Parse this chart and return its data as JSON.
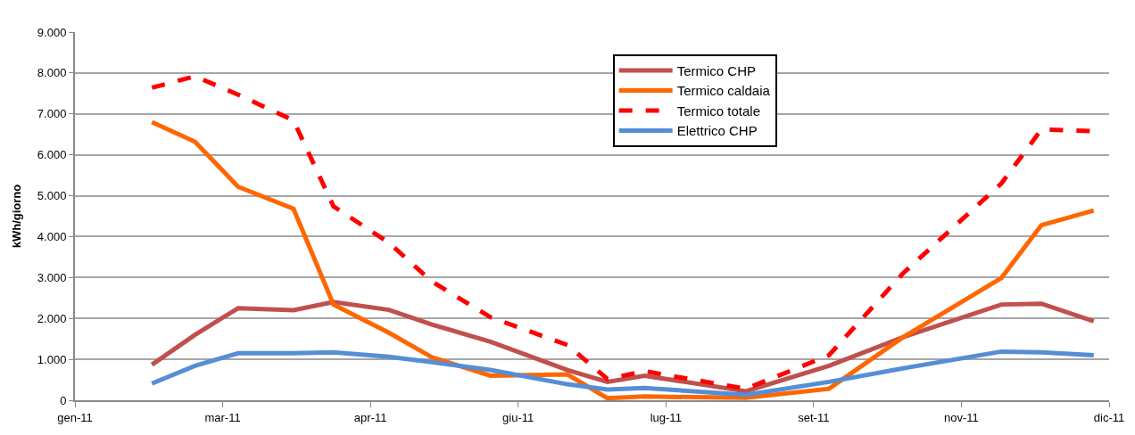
{
  "chart_data": {
    "type": "line",
    "ylabel": "kWh/giorno",
    "x": [
      "2011-02-14",
      "2011-02-28",
      "2011-03-14",
      "2011-04-01",
      "2011-04-14",
      "2011-05-02",
      "2011-05-16",
      "2011-06-04",
      "2011-06-29",
      "2011-07-12",
      "2011-07-24",
      "2011-08-26",
      "2011-09-22",
      "2011-10-16",
      "2011-11-17",
      "2011-11-30",
      "2011-12-17"
    ],
    "series": [
      {
        "name": "Termico CHP",
        "color": "#c0504d",
        "line_style": "solid",
        "values": [
          870,
          1600,
          2250,
          2200,
          2400,
          2210,
          1850,
          1430,
          740,
          450,
          600,
          220,
          840,
          1540,
          2340,
          2360,
          1930
        ]
      },
      {
        "name": "Termico caldaia",
        "color": "#ff6600",
        "line_style": "solid",
        "values": [
          6800,
          6320,
          5220,
          4680,
          2340,
          1650,
          1050,
          600,
          630,
          50,
          90,
          60,
          280,
          1540,
          2990,
          4280,
          4640
        ]
      },
      {
        "name": "Termico totale",
        "color": "#ff0000",
        "line_style": "dashed",
        "values": [
          7640,
          7920,
          7470,
          6840,
          4740,
          3850,
          2900,
          2030,
          1350,
          520,
          710,
          280,
          1100,
          3100,
          5300,
          6620,
          6580
        ]
      },
      {
        "name": "Elettrico CHP",
        "color": "#558ed5",
        "line_style": "solid",
        "values": [
          410,
          840,
          1150,
          1150,
          1170,
          1060,
          930,
          740,
          390,
          260,
          300,
          130,
          450,
          780,
          1190,
          1170,
          1100
        ]
      }
    ],
    "xlim": [
      "2011-01-20",
      "2011-12-22"
    ],
    "xticks": [
      {
        "value": "2011-01-20",
        "label": "gen-11"
      },
      {
        "value": "2011-03-09",
        "label": "mar-11"
      },
      {
        "value": "2011-04-26",
        "label": "apr-11"
      },
      {
        "value": "2011-06-13",
        "label": "giu-11"
      },
      {
        "value": "2011-07-31",
        "label": "lug-11"
      },
      {
        "value": "2011-09-17",
        "label": "set-11"
      },
      {
        "value": "2011-11-04",
        "label": "nov-11"
      },
      {
        "value": "2011-12-22",
        "label": "dic-11"
      }
    ],
    "ylim": [
      0,
      9000
    ],
    "yticks": [
      0,
      {
        "value": 1000,
        "label": "1.000"
      },
      {
        "value": 2000,
        "label": "2.000"
      },
      {
        "value": 3000,
        "label": "3.000"
      },
      {
        "value": 4000,
        "label": "4.000"
      },
      {
        "value": 5000,
        "label": "5.000"
      },
      {
        "value": 6000,
        "label": "6.000"
      },
      {
        "value": 7000,
        "label": "7.000"
      },
      {
        "value": 8000,
        "label": "8.000"
      },
      {
        "value": 9000,
        "label": "9.000"
      }
    ],
    "grid": "y",
    "legend": "top",
    "marker": "none"
  }
}
